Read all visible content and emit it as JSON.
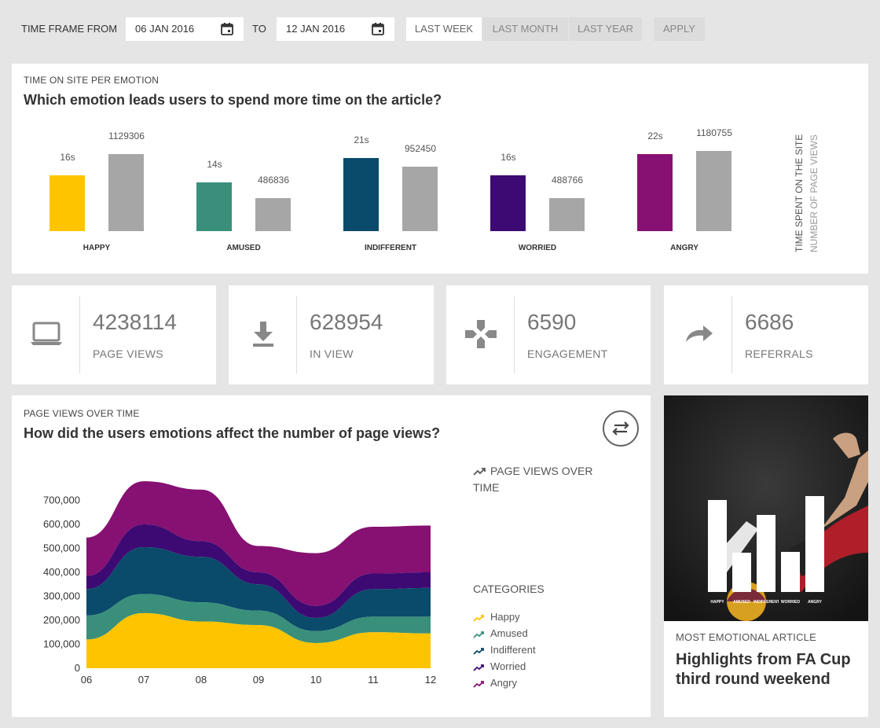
{
  "filter": {
    "from_label": "TIME FRAME FROM",
    "from_value": "06 JAN 2016",
    "to_label": "TO",
    "to_value": "12 JAN 2016",
    "ranges": [
      "LAST WEEK",
      "LAST MONTH",
      "LAST YEAR"
    ],
    "active_range": "LAST WEEK",
    "apply_label": "APPLY"
  },
  "emotion_card": {
    "subtitle": "TIME ON SITE PER EMOTION",
    "title": "Which emotion leads users to spend more time on the article?",
    "legend_time": "TIME SPENT ON THE SITE",
    "legend_views": "NUMBER OF PAGE VIEWS"
  },
  "kpis": [
    {
      "icon": "laptop-icon",
      "value": "4238114",
      "label": "PAGE VIEWS"
    },
    {
      "icon": "download-icon",
      "value": "628954",
      "label": "IN VIEW"
    },
    {
      "icon": "gamepad-icon",
      "value": "6590",
      "label": "ENGAGEMENT"
    },
    {
      "icon": "share-arrow-icon",
      "value": "6686",
      "label": "REFERRALS"
    }
  ],
  "area_card": {
    "subtitle": "PAGE VIEWS OVER TIME",
    "title": "How did the users emotions affect the number of page views?",
    "legend_title": "PAGE VIEWS OVER TIME",
    "categories_title": "CATEGORIES"
  },
  "article": {
    "subtitle": "MOST EMOTIONAL ARTICLE",
    "title": "Highlights from FA Cup third round weekend",
    "mini_labels": [
      "HAPPY",
      "AMUSED",
      "INDIFFERENT",
      "WORRIED",
      "ANGRY"
    ]
  },
  "colors": {
    "Happy": "#ffc400",
    "Amused": "#3a8f7b",
    "Indifferent": "#0a4a6a",
    "Worried": "#3d0a73",
    "Angry": "#861172",
    "views_bar": "#a6a6a6"
  },
  "chart_data": [
    {
      "type": "bar",
      "categories": [
        "HAPPY",
        "AMUSED",
        "INDIFFERENT",
        "WORRIED",
        "ANGRY"
      ],
      "series": [
        {
          "name": "TIME SPENT ON THE SITE",
          "values": [
            16,
            14,
            21,
            16,
            22
          ],
          "labels": [
            "16s",
            "14s",
            "21s",
            "16s",
            "22s"
          ]
        },
        {
          "name": "NUMBER OF PAGE VIEWS",
          "values": [
            1129306,
            486836,
            952450,
            488766,
            1180755
          ],
          "labels": [
            "1129306",
            "486836",
            "952450",
            "488766",
            "1180755"
          ]
        }
      ]
    },
    {
      "type": "area",
      "stacked": true,
      "x": [
        "06",
        "07",
        "08",
        "09",
        "10",
        "11",
        "12"
      ],
      "ylim": [
        0,
        800000
      ],
      "yticks": [
        "0",
        "100,000",
        "200,000",
        "300,000",
        "400,000",
        "500,000",
        "600,000",
        "700,000"
      ],
      "series": [
        {
          "name": "Happy",
          "values": [
            120000,
            230000,
            195000,
            180000,
            105000,
            150000,
            145000
          ]
        },
        {
          "name": "Amused",
          "values": [
            100000,
            80000,
            80000,
            60000,
            50000,
            65000,
            70000
          ]
        },
        {
          "name": "Indifferent",
          "values": [
            110000,
            195000,
            190000,
            110000,
            55000,
            115000,
            120000
          ]
        },
        {
          "name": "Worried",
          "values": [
            55000,
            95000,
            65000,
            50000,
            50000,
            65000,
            65000
          ]
        },
        {
          "name": "Angry",
          "values": [
            160000,
            180000,
            215000,
            110000,
            220000,
            195000,
            195000
          ]
        }
      ]
    }
  ]
}
